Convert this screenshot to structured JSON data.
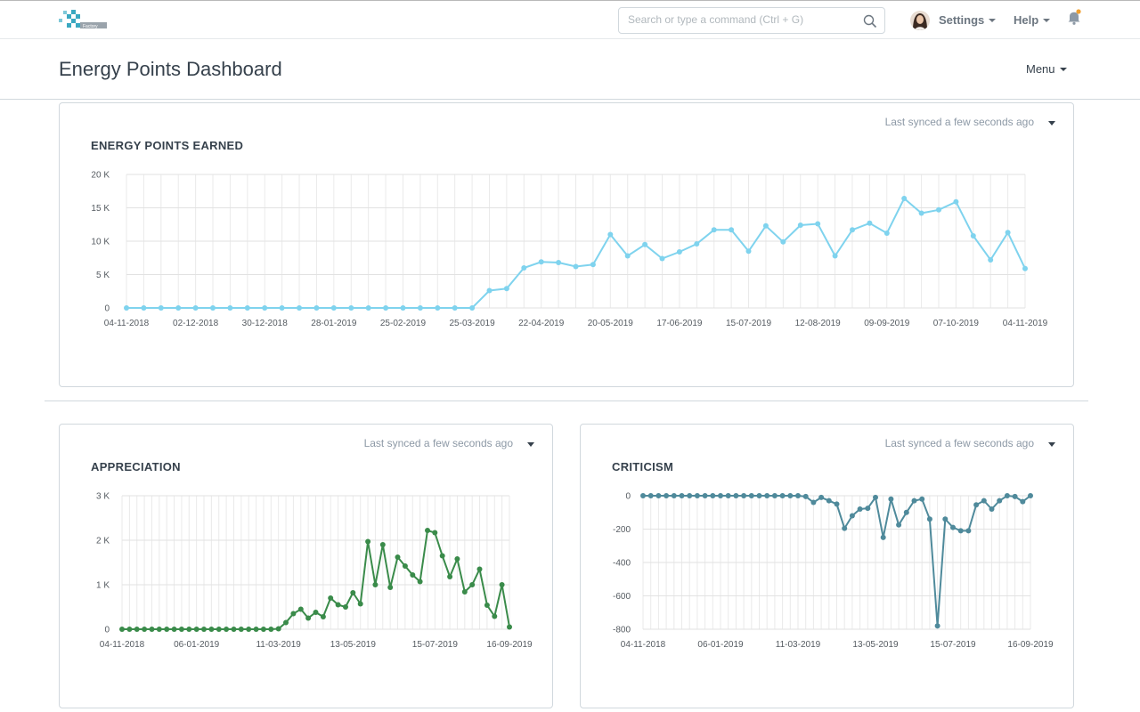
{
  "navbar": {
    "logo_text": "Factory",
    "search_placeholder": "Search or type a command (Ctrl + G)",
    "settings_label": "Settings",
    "help_label": "Help"
  },
  "page": {
    "title": "Energy Points Dashboard",
    "menu_label": "Menu"
  },
  "colors": {
    "earned": "#7fd3ee",
    "appreciation": "#3a8b4a",
    "criticism": "#4f8a9b",
    "notification_dot": "#f0a030"
  },
  "charts": {
    "earned": {
      "sync_text": "Last synced a few seconds ago",
      "chart_data": {
        "type": "line",
        "title": "ENERGY POINTS EARNED",
        "ylim": [
          0,
          20000
        ],
        "yticks": [
          "0",
          "5 K",
          "10 K",
          "15 K",
          "20 K"
        ],
        "ytick_values": [
          0,
          5000,
          10000,
          15000,
          20000
        ],
        "xtick_labels": [
          "04-11-2018",
          "02-12-2018",
          "30-12-2018",
          "28-01-2019",
          "25-02-2019",
          "25-03-2019",
          "22-04-2019",
          "20-05-2019",
          "17-06-2019",
          "15-07-2019",
          "12-08-2019",
          "09-09-2019",
          "07-10-2019",
          "04-11-2019"
        ],
        "grid": true,
        "series": [
          {
            "values": [
              0,
              0,
              0,
              0,
              0,
              0,
              0,
              0,
              0,
              0,
              0,
              0,
              0,
              0,
              0,
              0,
              0,
              0,
              0,
              0,
              0,
              2600,
              2900,
              6000,
              6900,
              6800,
              6200,
              6500,
              11000,
              7800,
              9500,
              7400,
              8400,
              9600,
              11700,
              11700,
              8500,
              12300,
              9900,
              12400,
              12600,
              7800,
              11700,
              12700,
              11200,
              16400,
              14200,
              14700,
              15900,
              10800,
              7200,
              11300,
              5900
            ]
          }
        ]
      }
    },
    "appreciation": {
      "sync_text": "Last synced a few seconds ago",
      "chart_data": {
        "type": "line",
        "title": "APPRECIATION",
        "ylim": [
          0,
          3000
        ],
        "yticks": [
          "0",
          "1 K",
          "2 K",
          "3 K"
        ],
        "ytick_values": [
          0,
          1000,
          2000,
          3000
        ],
        "xtick_labels": [
          "04-11-2018",
          "06-01-2019",
          "11-03-2019",
          "13-05-2019",
          "15-07-2019",
          "16-09-2019"
        ],
        "grid": true,
        "series": [
          {
            "values": [
              0,
              0,
              0,
              0,
              0,
              0,
              0,
              0,
              0,
              0,
              0,
              0,
              0,
              0,
              0,
              0,
              0,
              0,
              0,
              0,
              0,
              10,
              150,
              350,
              450,
              250,
              380,
              280,
              700,
              550,
              500,
              820,
              570,
              1970,
              1000,
              1900,
              940,
              1620,
              1420,
              1220,
              1070,
              2220,
              2170,
              1650,
              1180,
              1580,
              840,
              1000,
              1350,
              540,
              290,
              1000,
              50
            ]
          }
        ]
      }
    },
    "criticism": {
      "sync_text": "Last synced a few seconds ago",
      "chart_data": {
        "type": "line",
        "title": "CRITICISM",
        "ylim": [
          -800,
          0
        ],
        "yticks": [
          "-800",
          "-600",
          "-400",
          "-200",
          "0"
        ],
        "ytick_values": [
          -800,
          -600,
          -400,
          -200,
          0
        ],
        "xtick_labels": [
          "04-11-2018",
          "06-01-2019",
          "11-03-2019",
          "13-05-2019",
          "15-07-2019",
          "16-09-2019"
        ],
        "grid": true,
        "series": [
          {
            "values": [
              0,
              0,
              0,
              0,
              0,
              0,
              0,
              0,
              0,
              0,
              0,
              0,
              0,
              0,
              0,
              0,
              0,
              0,
              0,
              0,
              0,
              -5,
              -40,
              -10,
              -30,
              -50,
              -195,
              -120,
              -80,
              -75,
              -10,
              -250,
              -20,
              -175,
              -100,
              -30,
              -20,
              -140,
              -780,
              -140,
              -190,
              -210,
              -210,
              -55,
              -30,
              -80,
              -30,
              0,
              -5,
              -35,
              0
            ]
          }
        ]
      }
    }
  }
}
